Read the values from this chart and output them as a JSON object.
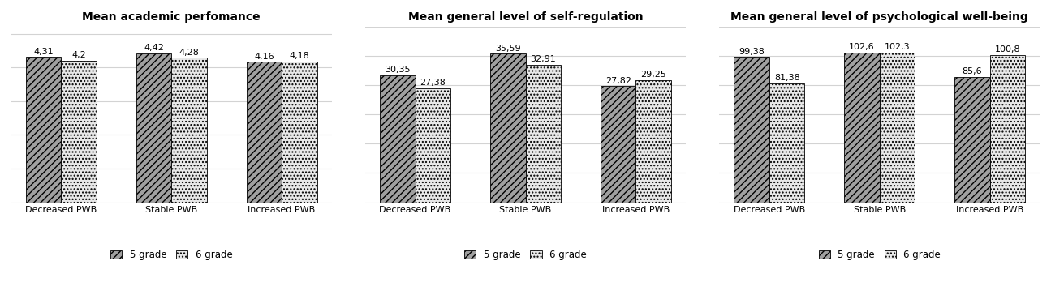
{
  "charts": [
    {
      "title": "Mean academic perfomance",
      "categories": [
        "Decreased PWB",
        "Stable PWB",
        "Increased PWB"
      ],
      "grade5": [
        4.31,
        4.42,
        4.16
      ],
      "grade6": [
        4.2,
        4.28,
        4.18
      ],
      "ylim": [
        0,
        5.2
      ],
      "yticks": [
        0,
        1.0,
        2.0,
        3.0,
        4.0,
        5.0
      ]
    },
    {
      "title": "Mean general level of self-regulation",
      "categories": [
        "Decreased PWB",
        "Stable PWB",
        "Increased PWB"
      ],
      "grade5": [
        30.35,
        35.59,
        27.82
      ],
      "grade6": [
        27.38,
        32.91,
        29.25
      ],
      "ylim": [
        0,
        42
      ],
      "yticks": [
        0,
        7,
        14,
        21,
        28,
        35,
        42
      ]
    },
    {
      "title": "Mean general level of psychological well-being",
      "categories": [
        "Decreased PWB",
        "Stable PWB",
        "Increased PWB"
      ],
      "grade5": [
        99.38,
        102.6,
        85.6
      ],
      "grade6": [
        81.38,
        102.3,
        100.8
      ],
      "ylim": [
        0,
        120
      ],
      "yticks": [
        0,
        20,
        40,
        60,
        80,
        100,
        120
      ]
    }
  ],
  "bar_color_5": "#a0a0a0",
  "bar_color_6": "#e8e8e8",
  "hatch_5": "////",
  "hatch_6": "....",
  "title_fontsize": 10,
  "label_fontsize": 8,
  "tick_fontsize": 8,
  "legend_fontsize": 8.5,
  "bar_width": 0.32,
  "background_color": "#ffffff"
}
